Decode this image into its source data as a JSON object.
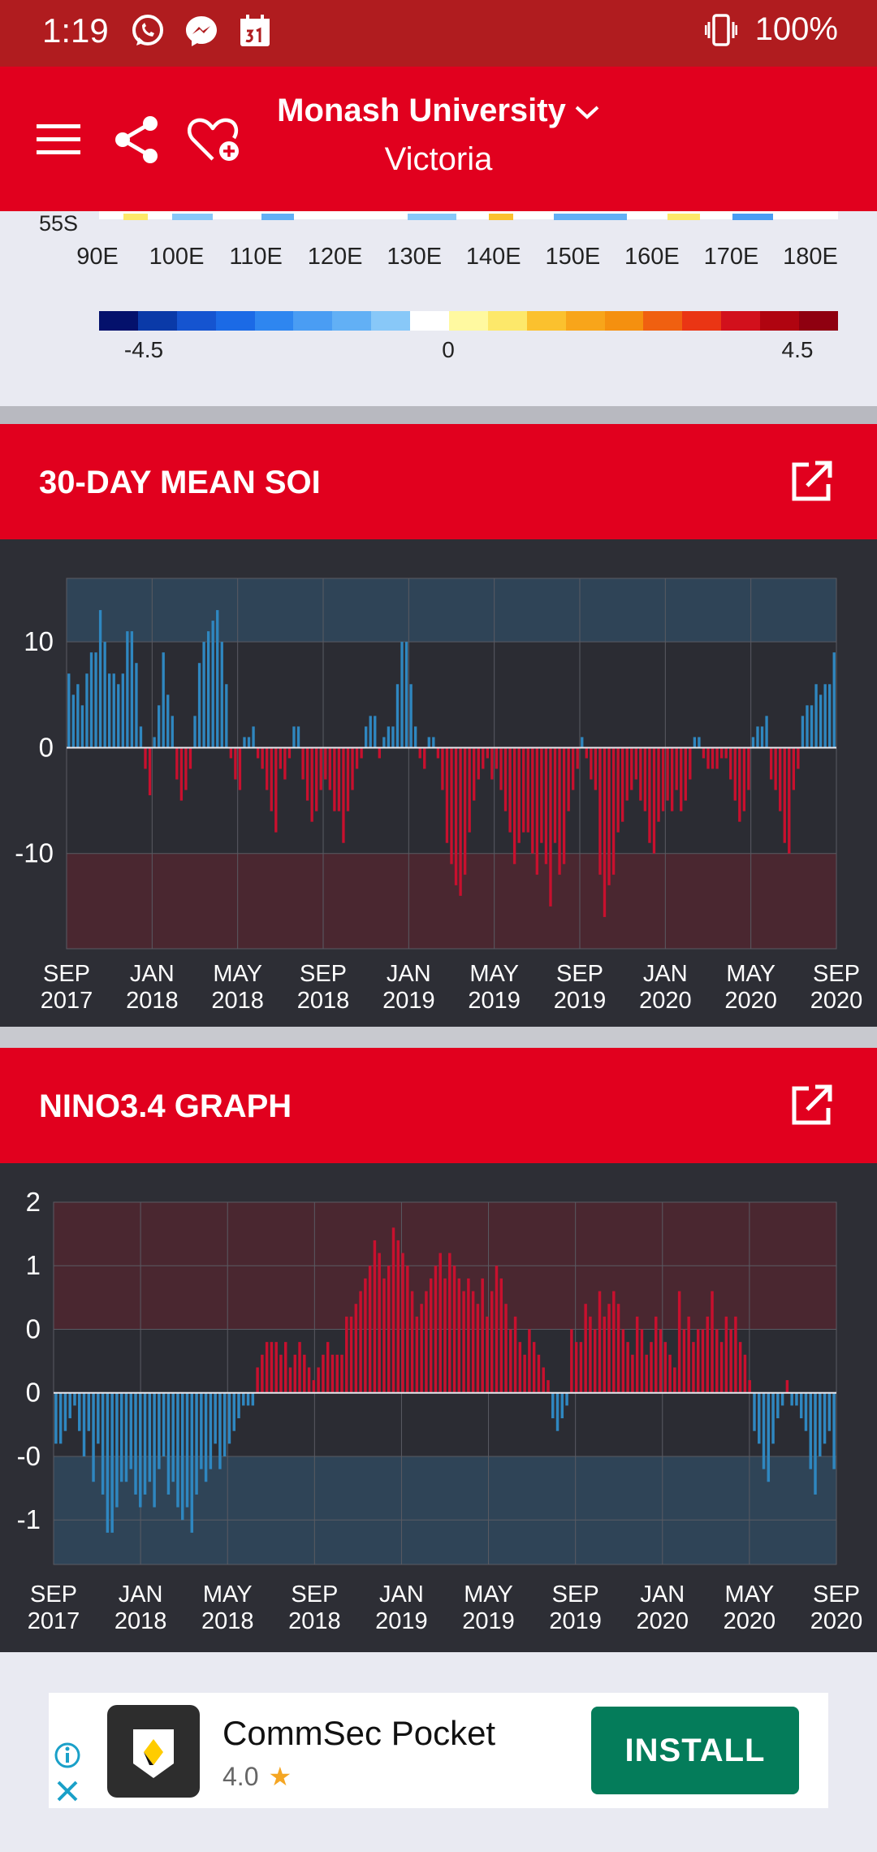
{
  "status": {
    "time": "1:19",
    "battery": "100%"
  },
  "header": {
    "title": "Monash University",
    "subtitle": "Victoria"
  },
  "map": {
    "lat_label": "55S",
    "lon_labels": [
      "90E",
      "100E",
      "110E",
      "120E",
      "130E",
      "140E",
      "150E",
      "160E",
      "170E",
      "180E"
    ],
    "scale_min": "-4.5",
    "scale_mid": "0",
    "scale_max": "4.5",
    "scale_colors": [
      "#04116c",
      "#0a3aa8",
      "#1554d0",
      "#1b6ae6",
      "#2e86f0",
      "#4a9df3",
      "#62b0f5",
      "#88c8f8",
      "#ffffff",
      "#fff9a0",
      "#fde86a",
      "#fbc12e",
      "#f8a51a",
      "#f5900f",
      "#f06010",
      "#ea3514",
      "#d2101c",
      "#b00410",
      "#8f0010"
    ]
  },
  "soi": {
    "title": "30-DAY MEAN SOI"
  },
  "nino": {
    "title": "NINO3.4 GRAPH"
  },
  "ad": {
    "name": "CommSec Pocket",
    "rating": "4.0",
    "install_label": "INSTALL"
  },
  "colors": {
    "accent_red": "#e1001e",
    "status_red": "#b01c1f",
    "positive_blue": "#2f87c0",
    "negative_red": "#c8102e"
  },
  "chart_data": [
    {
      "type": "bar",
      "title": "30-DAY MEAN SOI",
      "x_labels": [
        [
          "SEP",
          "2017"
        ],
        [
          "JAN",
          "2018"
        ],
        [
          "MAY",
          "2018"
        ],
        [
          "SEP",
          "2018"
        ],
        [
          "JAN",
          "2019"
        ],
        [
          "MAY",
          "2019"
        ],
        [
          "SEP",
          "2019"
        ],
        [
          "JAN",
          "2020"
        ],
        [
          "MAY",
          "2020"
        ],
        [
          "SEP",
          "2020"
        ]
      ],
      "y_ticks": [
        "10",
        "0",
        "-10"
      ],
      "y_tick_values": [
        10,
        0,
        -10
      ],
      "ylim": [
        -19,
        16
      ],
      "grid": true,
      "values": [
        7,
        5,
        6,
        4,
        7,
        9,
        9,
        13,
        10,
        7,
        7,
        6,
        7,
        11,
        11,
        8,
        2,
        -2,
        -4.5,
        1,
        4,
        9,
        5,
        3,
        -3,
        -5,
        -4,
        -2,
        3,
        8,
        10,
        11,
        12,
        13,
        10,
        6,
        -1,
        -3,
        -4,
        1,
        1,
        2,
        -1,
        -2,
        -4,
        -6,
        -8,
        -2,
        -3,
        -1,
        2,
        2,
        -3,
        -5,
        -7,
        -6,
        -4,
        -3,
        -4,
        -6,
        -6,
        -9,
        -6,
        -4,
        -2,
        -1,
        2,
        3,
        3,
        -1,
        1,
        2,
        2,
        6,
        10,
        10,
        6,
        2,
        -1,
        -2,
        1,
        1,
        -1,
        -4,
        -9,
        -11,
        -13,
        -14,
        -12,
        -8,
        -5,
        -3,
        -2,
        -1,
        -3,
        -2,
        -4,
        -6,
        -8,
        -11,
        -9,
        -8,
        -8,
        -10,
        -12,
        -9,
        -11,
        -15,
        -9,
        -12,
        -11,
        -6,
        -4,
        -2,
        1,
        -1,
        -3,
        -4,
        -12,
        -16,
        -13,
        -12,
        -8,
        -7,
        -5,
        -4,
        -3,
        -5,
        -6,
        -9,
        -10,
        -7,
        -6,
        -5,
        -6,
        -4,
        -6,
        -5,
        -3,
        1,
        1,
        -1,
        -2,
        -2,
        -2,
        -1,
        -1,
        -3,
        -5,
        -7,
        -6,
        -4,
        1,
        2,
        2,
        3,
        -3,
        -4,
        -6,
        -9,
        -10,
        -4,
        -2,
        3,
        4,
        4,
        6,
        5,
        6,
        6,
        9
      ]
    },
    {
      "type": "bar",
      "title": "NINO3.4 GRAPH",
      "x_labels": [
        [
          "SEP",
          "2017"
        ],
        [
          "JAN",
          "2018"
        ],
        [
          "MAY",
          "2018"
        ],
        [
          "SEP",
          "2018"
        ],
        [
          "JAN",
          "2019"
        ],
        [
          "MAY",
          "2019"
        ],
        [
          "SEP",
          "2019"
        ],
        [
          "JAN",
          "2020"
        ],
        [
          "MAY",
          "2020"
        ],
        [
          "SEP",
          "2020"
        ]
      ],
      "y_ticks": [
        "2",
        "1",
        "0",
        "0",
        "-0",
        "-1"
      ],
      "y_tick_values": [
        1.5,
        1.0,
        0.5,
        0.0,
        -0.5,
        -1.0
      ],
      "ylim": [
        -1.35,
        1.5
      ],
      "grid": true,
      "values": [
        -0.4,
        -0.4,
        -0.3,
        -0.2,
        -0.1,
        -0.3,
        -0.5,
        -0.3,
        -0.7,
        -0.4,
        -0.8,
        -1.1,
        -1.1,
        -0.9,
        -0.7,
        -0.7,
        -0.6,
        -0.8,
        -0.9,
        -0.8,
        -0.7,
        -0.9,
        -0.6,
        -0.5,
        -0.8,
        -0.7,
        -0.9,
        -1.0,
        -0.9,
        -1.1,
        -0.8,
        -0.6,
        -0.7,
        -0.6,
        -0.4,
        -0.6,
        -0.5,
        -0.4,
        -0.3,
        -0.2,
        -0.1,
        -0.1,
        -0.1,
        0.2,
        0.3,
        0.4,
        0.4,
        0.4,
        0.3,
        0.4,
        0.2,
        0.3,
        0.4,
        0.3,
        0.2,
        0.1,
        0.2,
        0.3,
        0.4,
        0.3,
        0.3,
        0.3,
        0.6,
        0.6,
        0.7,
        0.8,
        0.9,
        1.0,
        1.2,
        1.1,
        0.9,
        1.0,
        1.3,
        1.2,
        1.1,
        1.0,
        0.8,
        0.6,
        0.7,
        0.8,
        0.9,
        1.0,
        1.1,
        0.9,
        1.1,
        1.0,
        0.9,
        0.8,
        0.9,
        0.8,
        0.7,
        0.9,
        0.6,
        0.8,
        1.0,
        0.9,
        0.7,
        0.5,
        0.6,
        0.4,
        0.3,
        0.5,
        0.4,
        0.3,
        0.2,
        0.1,
        -0.2,
        -0.3,
        -0.2,
        -0.1,
        0.5,
        0.4,
        0.4,
        0.7,
        0.6,
        0.5,
        0.8,
        0.6,
        0.7,
        0.8,
        0.7,
        0.5,
        0.4,
        0.3,
        0.6,
        0.5,
        0.3,
        0.4,
        0.6,
        0.5,
        0.4,
        0.3,
        0.2,
        0.8,
        0.5,
        0.6,
        0.4,
        0.5,
        0.5,
        0.6,
        0.8,
        0.5,
        0.4,
        0.6,
        0.5,
        0.6,
        0.4,
        0.3,
        0.1,
        -0.3,
        -0.4,
        -0.6,
        -0.7,
        -0.4,
        -0.2,
        -0.1,
        0.1,
        -0.1,
        -0.1,
        -0.2,
        -0.3,
        -0.6,
        -0.8,
        -0.5,
        -0.4,
        -0.3,
        -0.6
      ]
    }
  ]
}
